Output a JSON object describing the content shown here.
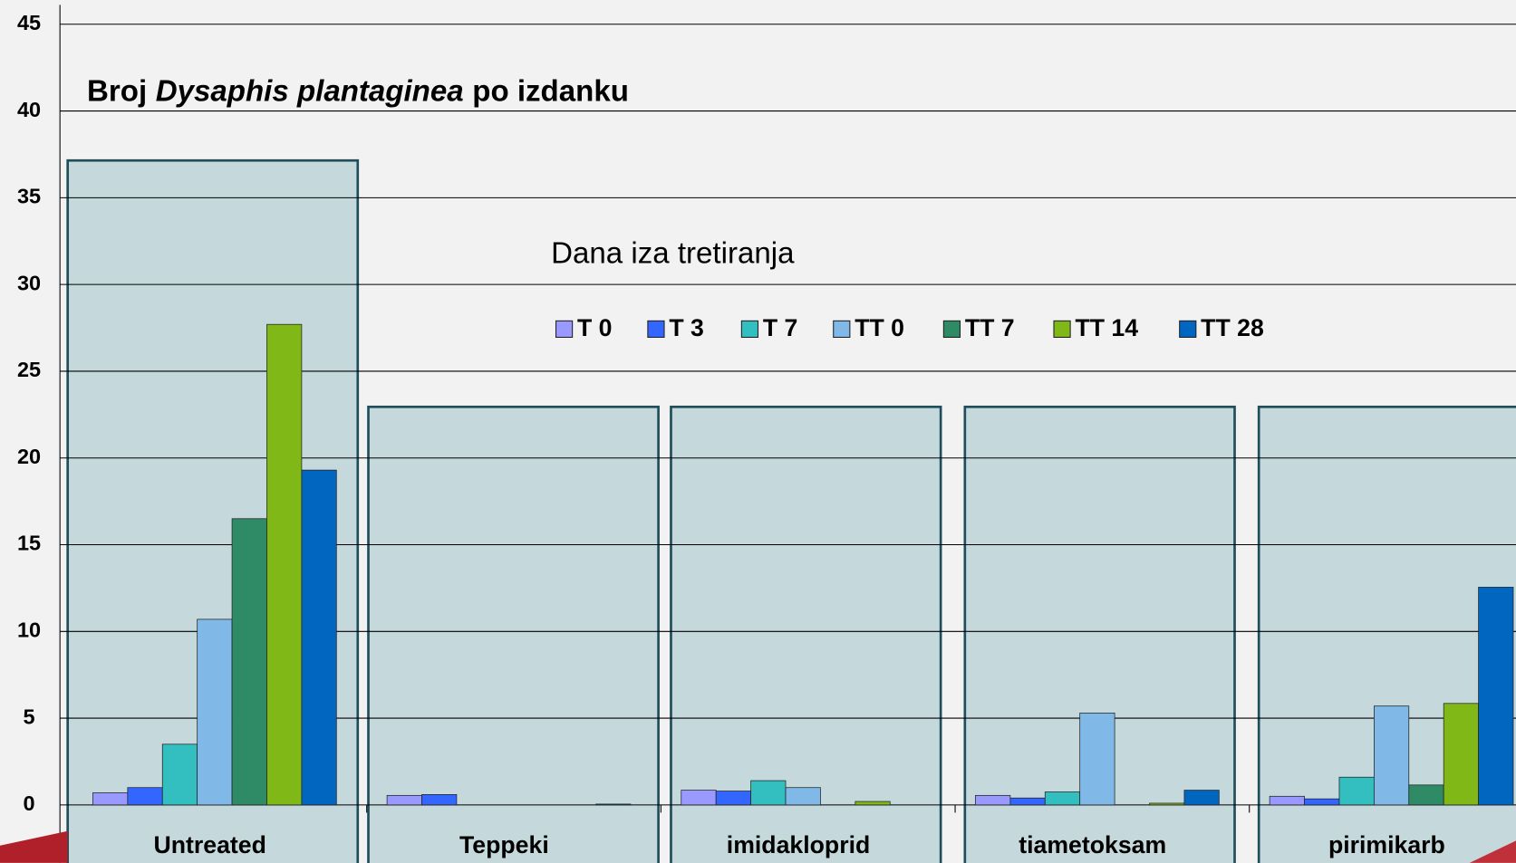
{
  "chart_data": {
    "type": "bar",
    "title": [
      "Broj",
      "Dysaphis plantaginea",
      "po izdanku"
    ],
    "legend_title": "Dana iza tretiranja",
    "categories": [
      "Untreated",
      "Teppeki",
      "imidakloprid",
      "tiametoksam",
      "pirimikarb"
    ],
    "series": [
      {
        "name": "T 0",
        "color": "#9999ff",
        "values": [
          0.7,
          0.55,
          0.85,
          0.55,
          0.5
        ]
      },
      {
        "name": "T 3",
        "color": "#3366ff",
        "values": [
          1.0,
          0.6,
          0.8,
          0.4,
          0.35
        ]
      },
      {
        "name": "T 7",
        "color": "#33bfbf",
        "values": [
          3.5,
          0,
          1.4,
          0.75,
          1.6
        ]
      },
      {
        "name": "TT 0",
        "color": "#80b8e8",
        "values": [
          10.7,
          0,
          1.0,
          5.3,
          5.7
        ]
      },
      {
        "name": "TT 7",
        "color": "#2e8b65",
        "values": [
          16.5,
          0,
          0,
          0,
          1.15
        ]
      },
      {
        "name": "TT 14",
        "color": "#80b818",
        "values": [
          27.7,
          0,
          0.2,
          0.1,
          5.85
        ]
      },
      {
        "name": "TT 28",
        "color": "#0066c0",
        "values": [
          19.3,
          0.05,
          0,
          0.85,
          12.55
        ]
      }
    ],
    "ylim": [
      0,
      45
    ],
    "yticks": [
      0,
      5,
      10,
      15,
      20,
      25,
      30,
      35,
      40,
      45
    ],
    "grid": true
  }
}
